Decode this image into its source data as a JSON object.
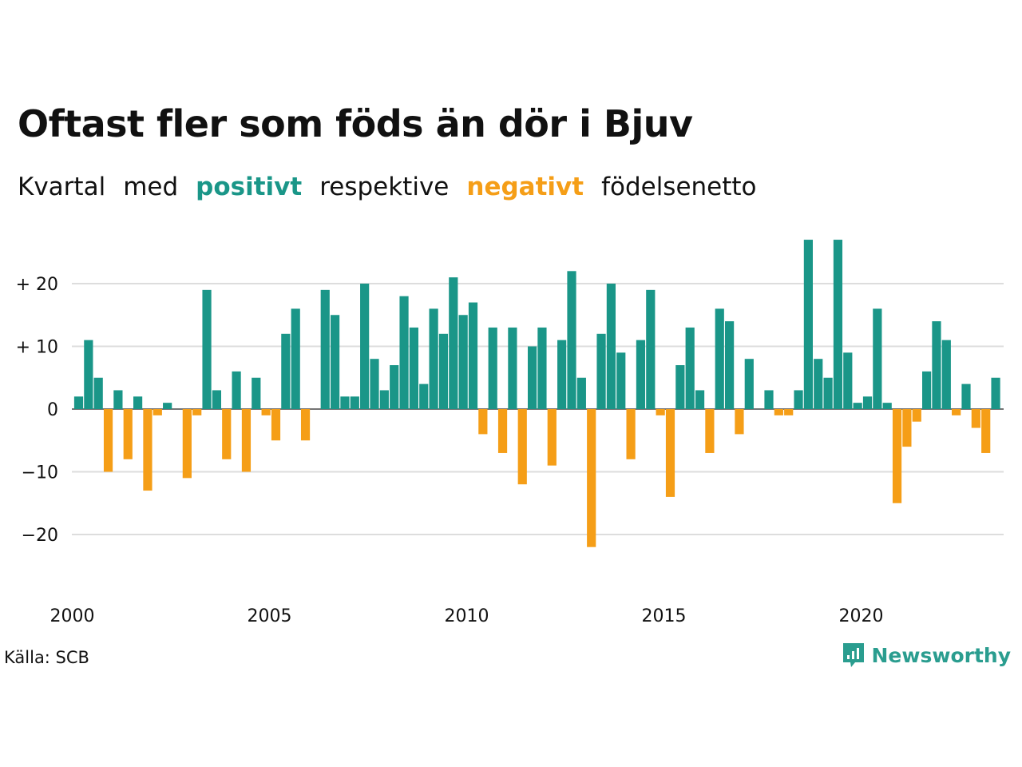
{
  "header": {
    "title": "Oftast fler som föds än dör i Bjuv",
    "subtitle": {
      "w1": "Kvartal",
      "w2": "med",
      "positive": "positivt",
      "w3": "respektive",
      "negative": "negativt",
      "w4": "födelsenetto"
    }
  },
  "footer": {
    "source": "Källa: SCB",
    "brand": "Newsworthy"
  },
  "colors": {
    "positive": "#1a9688",
    "negative": "#f59e17",
    "grid": "#dddddd",
    "brand": "#2a9d8f"
  },
  "chart_data": {
    "type": "bar",
    "title": "Oftast fler som föds än dör i Bjuv",
    "x_start": 2000,
    "periods_per_year": 4,
    "x_ticks": [
      2000,
      2005,
      2010,
      2015,
      2020
    ],
    "y_ticks": [
      {
        "value": 20,
        "label": "+ 20"
      },
      {
        "value": 10,
        "label": "+ 10"
      },
      {
        "value": 0,
        "label": "0"
      },
      {
        "value": -10,
        "label": "−10"
      },
      {
        "value": -20,
        "label": "−20"
      }
    ],
    "ylim": [
      -29,
      27
    ],
    "grid": true,
    "values": [
      2,
      11,
      5,
      -10,
      3,
      -8,
      2,
      -13,
      -1,
      1,
      0,
      -11,
      -1,
      19,
      3,
      -8,
      6,
      -10,
      5,
      -1,
      -5,
      12,
      16,
      -5,
      0,
      19,
      15,
      2,
      2,
      20,
      8,
      3,
      7,
      18,
      13,
      4,
      16,
      12,
      21,
      15,
      17,
      -4,
      13,
      -7,
      13,
      -12,
      10,
      13,
      -9,
      11,
      22,
      5,
      -22,
      12,
      20,
      9,
      -8,
      11,
      19,
      -1,
      -14,
      7,
      13,
      3,
      -7,
      16,
      14,
      -4,
      8,
      0,
      3,
      -1,
      -1,
      3,
      27,
      8,
      5,
      27,
      9,
      1,
      2,
      16,
      1,
      -15,
      -6,
      -2,
      6,
      14,
      11,
      -1,
      4,
      -3,
      -7,
      5
    ]
  }
}
